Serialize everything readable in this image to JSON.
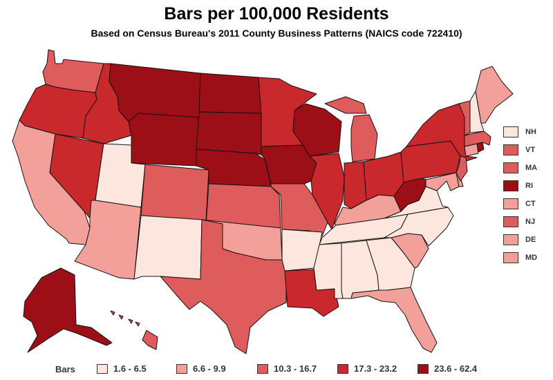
{
  "title": "Bars per 100,000 Residents",
  "subtitle": "Based on Census Bureau's 2011 County Business Patterns (NAICS code 722410)",
  "colors": {
    "c1": "#fde6dd",
    "c2": "#f4a09a",
    "c3": "#de5c5c",
    "c4": "#c9282d",
    "c5": "#9c0f16"
  },
  "legend": {
    "title": "Bars",
    "items": [
      {
        "label": "1.6 - 6.5",
        "color_key": "c1"
      },
      {
        "label": "6.6 - 9.9",
        "color_key": "c2"
      },
      {
        "label": "10.3 - 16.7",
        "color_key": "c3"
      },
      {
        "label": "17.3 - 23.2",
        "color_key": "c4"
      },
      {
        "label": "23.6 - 62.4",
        "color_key": "c5"
      }
    ]
  },
  "small_states": [
    {
      "label": "NH",
      "color_key": "c1"
    },
    {
      "label": "VT",
      "color_key": "c3"
    },
    {
      "label": "MA",
      "color_key": "c3"
    },
    {
      "label": "RI",
      "color_key": "c5"
    },
    {
      "label": "CT",
      "color_key": "c2"
    },
    {
      "label": "NJ",
      "color_key": "c3"
    },
    {
      "label": "DE",
      "color_key": "c2"
    },
    {
      "label": "MD",
      "color_key": "c2"
    }
  ],
  "state_classes": {
    "WA": "c3",
    "OR": "c4",
    "CA": "c2",
    "NV": "c4",
    "ID": "c4",
    "MT": "c5",
    "WY": "c5",
    "UT": "c1",
    "AZ": "c2",
    "NM": "c1",
    "CO": "c3",
    "ND": "c5",
    "SD": "c5",
    "NE": "c5",
    "KS": "c3",
    "OK": "c2",
    "TX": "c3",
    "MN": "c4",
    "IA": "c5",
    "MO": "c3",
    "AR": "c1",
    "LA": "c4",
    "WI": "c5",
    "IL": "c4",
    "MI": "c3",
    "IN": "c4",
    "OH": "c4",
    "KY": "c2",
    "TN": "c1",
    "MS": "c1",
    "AL": "c1",
    "GA": "c1",
    "FL": "c2",
    "SC": "c2",
    "NC": "c1",
    "VA": "c1",
    "WV": "c5",
    "PA": "c4",
    "NY": "c4",
    "ME": "c2",
    "NH": "c1",
    "VT": "c3",
    "MA": "c3",
    "RI": "c5",
    "CT": "c2",
    "NJ": "c3",
    "DE": "c2",
    "MD": "c2",
    "AK": "c5",
    "HI": "c3"
  }
}
